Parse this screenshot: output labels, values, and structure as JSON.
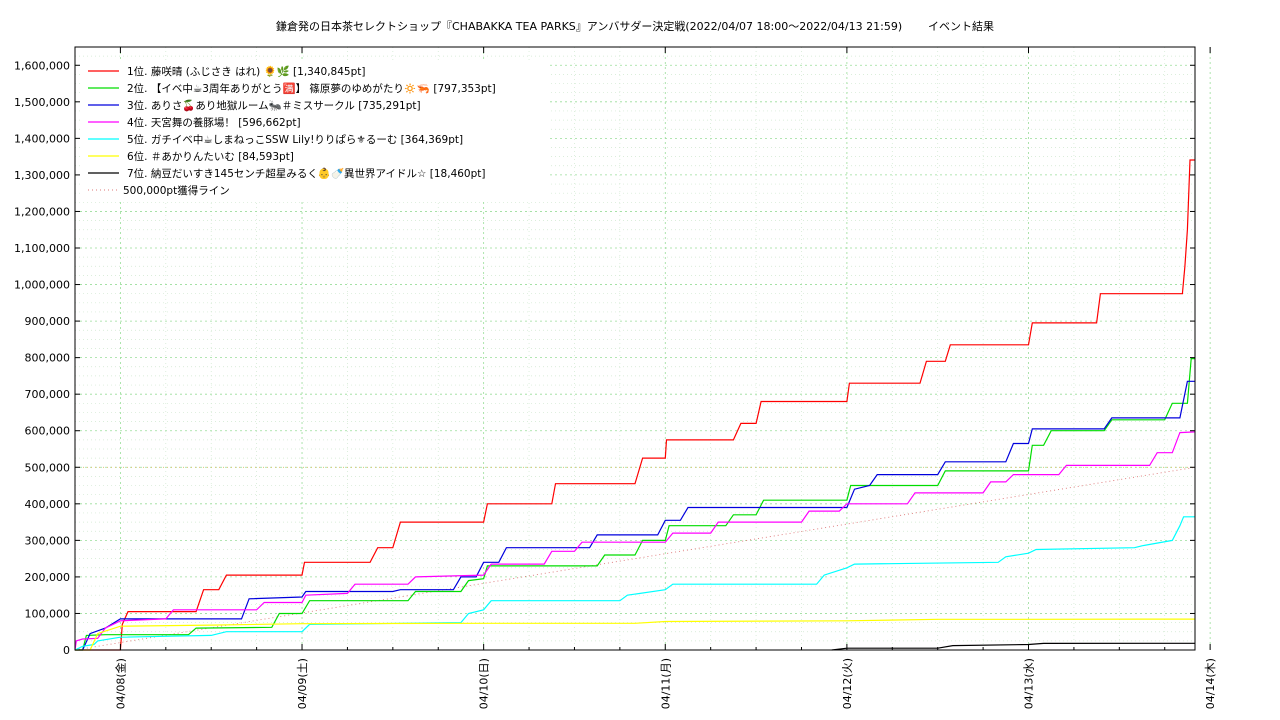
{
  "chart_data": {
    "type": "line",
    "title": "鎌倉発の日本茶セレクトショップ『CHABAKKA TEA PARKS』アンバサダー決定戦(2022/04/07 18:00～2022/04/13 21:59)",
    "subtitle": "イベント結果",
    "xlabel": "",
    "ylabel": "",
    "x_range": [
      "2022-04-07 18:00",
      "2022-04-13 22:00"
    ],
    "ylim": [
      0,
      1650000
    ],
    "y_ticks": [
      0,
      100000,
      200000,
      300000,
      400000,
      500000,
      600000,
      700000,
      800000,
      900000,
      1000000,
      1100000,
      1200000,
      1300000,
      1400000,
      1500000,
      1600000
    ],
    "y_tick_labels": [
      "0",
      "100,000",
      "200,000",
      "300,000",
      "400,000",
      "500,000",
      "600,000",
      "700,000",
      "800,000",
      "900,000",
      "1,000,000",
      "1,100,000",
      "1,200,000",
      "1,300,000",
      "1,400,000",
      "1,500,000",
      "1,600,000"
    ],
    "x_ticks": [
      "2022-04-08",
      "2022-04-09",
      "2022-04-10",
      "2022-04-11",
      "2022-04-12",
      "2022-04-13",
      "2022-04-14"
    ],
    "x_tick_labels": [
      "04/08(金)",
      "04/09(土)",
      "04/10(日)",
      "04/11(月)",
      "04/12(火)",
      "04/13(水)",
      "04/14(木)"
    ],
    "grid": true,
    "legend_position": "top-left",
    "series": [
      {
        "name": "1位. 藤咲晴 (ふじさき はれ) 🌻🌿 [1,340,845pt]",
        "color": "#ff0000",
        "points": [
          [
            "2022-04-07 18:00",
            0
          ],
          [
            "2022-04-08 00:00",
            0
          ],
          [
            "2022-04-08 00:15",
            70000
          ],
          [
            "2022-04-08 01:00",
            105000
          ],
          [
            "2022-04-08 10:00",
            105000
          ],
          [
            "2022-04-08 11:00",
            165000
          ],
          [
            "2022-04-08 13:00",
            165000
          ],
          [
            "2022-04-08 14:00",
            205000
          ],
          [
            "2022-04-09 00:00",
            205000
          ],
          [
            "2022-04-09 00:20",
            240000
          ],
          [
            "2022-04-09 09:00",
            240000
          ],
          [
            "2022-04-09 10:00",
            280000
          ],
          [
            "2022-04-09 12:00",
            280000
          ],
          [
            "2022-04-09 13:00",
            350000
          ],
          [
            "2022-04-10 00:00",
            350000
          ],
          [
            "2022-04-10 00:30",
            400000
          ],
          [
            "2022-04-10 09:00",
            400000
          ],
          [
            "2022-04-10 09:30",
            455000
          ],
          [
            "2022-04-10 20:00",
            455000
          ],
          [
            "2022-04-10 21:00",
            525000
          ],
          [
            "2022-04-11 00:00",
            525000
          ],
          [
            "2022-04-11 00:10",
            575000
          ],
          [
            "2022-04-11 09:00",
            575000
          ],
          [
            "2022-04-11 10:00",
            620000
          ],
          [
            "2022-04-11 12:00",
            620000
          ],
          [
            "2022-04-11 12:40",
            680000
          ],
          [
            "2022-04-12 00:00",
            680000
          ],
          [
            "2022-04-12 00:20",
            730000
          ],
          [
            "2022-04-12 09:40",
            730000
          ],
          [
            "2022-04-12 10:30",
            790000
          ],
          [
            "2022-04-12 13:00",
            790000
          ],
          [
            "2022-04-12 13:40",
            835000
          ],
          [
            "2022-04-13 00:00",
            835000
          ],
          [
            "2022-04-13 00:30",
            895000
          ],
          [
            "2022-04-13 09:00",
            895000
          ],
          [
            "2022-04-13 09:30",
            975000
          ],
          [
            "2022-04-13 20:20",
            975000
          ],
          [
            "2022-04-13 20:40",
            1050000
          ],
          [
            "2022-04-13 21:00",
            1150000
          ],
          [
            "2022-04-13 21:20",
            1340845
          ],
          [
            "2022-04-13 22:00",
            1340845
          ]
        ]
      },
      {
        "name": "2位. 【イベ中☕3周年ありがとう🈵】 篠原夢のゆめがたり🔅🦐 [797,353pt]",
        "color": "#00dd00",
        "points": [
          [
            "2022-04-07 18:00",
            0
          ],
          [
            "2022-04-07 19:00",
            0
          ],
          [
            "2022-04-07 19:30",
            40000
          ],
          [
            "2022-04-07 22:00",
            42000
          ],
          [
            "2022-04-08 09:00",
            42000
          ],
          [
            "2022-04-08 10:00",
            60000
          ],
          [
            "2022-04-08 20:00",
            62000
          ],
          [
            "2022-04-08 21:00",
            100000
          ],
          [
            "2022-04-09 00:00",
            100000
          ],
          [
            "2022-04-09 01:00",
            135000
          ],
          [
            "2022-04-09 14:00",
            135000
          ],
          [
            "2022-04-09 15:00",
            160000
          ],
          [
            "2022-04-09 21:00",
            160000
          ],
          [
            "2022-04-09 22:00",
            190000
          ],
          [
            "2022-04-10 00:00",
            195000
          ],
          [
            "2022-04-10 00:30",
            230000
          ],
          [
            "2022-04-10 15:00",
            230000
          ],
          [
            "2022-04-10 16:00",
            260000
          ],
          [
            "2022-04-10 20:00",
            260000
          ],
          [
            "2022-04-10 21:00",
            300000
          ],
          [
            "2022-04-11 00:00",
            300000
          ],
          [
            "2022-04-11 00:30",
            340000
          ],
          [
            "2022-04-11 08:00",
            340000
          ],
          [
            "2022-04-11 09:00",
            370000
          ],
          [
            "2022-04-11 12:00",
            370000
          ],
          [
            "2022-04-11 13:00",
            410000
          ],
          [
            "2022-04-12 00:00",
            410000
          ],
          [
            "2022-04-12 00:30",
            450000
          ],
          [
            "2022-04-12 12:00",
            450000
          ],
          [
            "2022-04-12 13:00",
            490000
          ],
          [
            "2022-04-13 00:00",
            490000
          ],
          [
            "2022-04-13 00:30",
            560000
          ],
          [
            "2022-04-13 02:00",
            560000
          ],
          [
            "2022-04-13 03:00",
            600000
          ],
          [
            "2022-04-13 10:00",
            600000
          ],
          [
            "2022-04-13 11:00",
            630000
          ],
          [
            "2022-04-13 18:00",
            630000
          ],
          [
            "2022-04-13 19:00",
            675000
          ],
          [
            "2022-04-13 21:00",
            675000
          ],
          [
            "2022-04-13 21:30",
            797353
          ],
          [
            "2022-04-13 22:00",
            797353
          ]
        ]
      },
      {
        "name": "3位. ありさ🍒あり地獄ルーム🐜＃ミスサークル [735,291pt]",
        "color": "#0000dd",
        "points": [
          [
            "2022-04-07 18:00",
            0
          ],
          [
            "2022-04-07 19:00",
            0
          ],
          [
            "2022-04-07 20:00",
            45000
          ],
          [
            "2022-04-07 22:00",
            60000
          ],
          [
            "2022-04-08 00:00",
            85000
          ],
          [
            "2022-04-08 12:00",
            85000
          ],
          [
            "2022-04-08 16:00",
            85000
          ],
          [
            "2022-04-08 17:00",
            140000
          ],
          [
            "2022-04-09 00:00",
            145000
          ],
          [
            "2022-04-09 00:30",
            160000
          ],
          [
            "2022-04-09 12:00",
            160000
          ],
          [
            "2022-04-09 13:00",
            165000
          ],
          [
            "2022-04-09 20:00",
            165000
          ],
          [
            "2022-04-09 21:00",
            200000
          ],
          [
            "2022-04-09 23:00",
            200000
          ],
          [
            "2022-04-10 00:00",
            240000
          ],
          [
            "2022-04-10 02:00",
            240000
          ],
          [
            "2022-04-10 03:00",
            280000
          ],
          [
            "2022-04-10 14:00",
            280000
          ],
          [
            "2022-04-10 15:00",
            315000
          ],
          [
            "2022-04-10 23:00",
            315000
          ],
          [
            "2022-04-11 00:00",
            355000
          ],
          [
            "2022-04-11 02:00",
            355000
          ],
          [
            "2022-04-11 03:00",
            390000
          ],
          [
            "2022-04-12 00:00",
            390000
          ],
          [
            "2022-04-12 01:00",
            440000
          ],
          [
            "2022-04-12 03:00",
            450000
          ],
          [
            "2022-04-12 04:00",
            480000
          ],
          [
            "2022-04-12 12:00",
            480000
          ],
          [
            "2022-04-12 13:00",
            515000
          ],
          [
            "2022-04-12 21:00",
            515000
          ],
          [
            "2022-04-12 22:00",
            565000
          ],
          [
            "2022-04-13 00:00",
            565000
          ],
          [
            "2022-04-13 00:30",
            605000
          ],
          [
            "2022-04-13 10:00",
            605000
          ],
          [
            "2022-04-13 11:00",
            635000
          ],
          [
            "2022-04-13 20:00",
            635000
          ],
          [
            "2022-04-13 21:00",
            735291
          ],
          [
            "2022-04-13 22:00",
            735291
          ]
        ]
      },
      {
        "name": "4位. 天宮舞の養豚場！ [596,662pt]",
        "color": "#ff00ff",
        "points": [
          [
            "2022-04-07 18:00",
            0
          ],
          [
            "2022-04-07 18:10",
            25000
          ],
          [
            "2022-04-07 19:00",
            30000
          ],
          [
            "2022-04-07 21:00",
            32000
          ],
          [
            "2022-04-07 22:00",
            60000
          ],
          [
            "2022-04-08 00:00",
            80000
          ],
          [
            "2022-04-08 06:00",
            85000
          ],
          [
            "2022-04-08 07:00",
            110000
          ],
          [
            "2022-04-08 18:00",
            110000
          ],
          [
            "2022-04-08 19:00",
            130000
          ],
          [
            "2022-04-09 00:00",
            130000
          ],
          [
            "2022-04-09 00:30",
            150000
          ],
          [
            "2022-04-09 06:00",
            155000
          ],
          [
            "2022-04-09 07:00",
            180000
          ],
          [
            "2022-04-09 14:00",
            180000
          ],
          [
            "2022-04-09 15:00",
            200000
          ],
          [
            "2022-04-10 00:00",
            205000
          ],
          [
            "2022-04-10 01:00",
            235000
          ],
          [
            "2022-04-10 08:00",
            235000
          ],
          [
            "2022-04-10 09:00",
            270000
          ],
          [
            "2022-04-10 12:00",
            270000
          ],
          [
            "2022-04-10 13:00",
            295000
          ],
          [
            "2022-04-11 00:00",
            295000
          ],
          [
            "2022-04-11 01:00",
            320000
          ],
          [
            "2022-04-11 06:00",
            320000
          ],
          [
            "2022-04-11 07:00",
            350000
          ],
          [
            "2022-04-11 18:00",
            350000
          ],
          [
            "2022-04-11 19:00",
            380000
          ],
          [
            "2022-04-11 23:00",
            380000
          ],
          [
            "2022-04-12 00:00",
            400000
          ],
          [
            "2022-04-12 08:00",
            400000
          ],
          [
            "2022-04-12 09:00",
            430000
          ],
          [
            "2022-04-12 18:00",
            430000
          ],
          [
            "2022-04-12 19:00",
            460000
          ],
          [
            "2022-04-12 21:00",
            460000
          ],
          [
            "2022-04-12 22:00",
            480000
          ],
          [
            "2022-04-13 04:00",
            480000
          ],
          [
            "2022-04-13 05:00",
            505000
          ],
          [
            "2022-04-13 16:00",
            505000
          ],
          [
            "2022-04-13 17:00",
            540000
          ],
          [
            "2022-04-13 19:00",
            540000
          ],
          [
            "2022-04-13 20:00",
            595000
          ],
          [
            "2022-04-13 22:00",
            596662
          ]
        ]
      },
      {
        "name": "5位. ガチイベ中☕しまねっこSSW Lily!りりぱら⚜るーむ [364,369pt]",
        "color": "#00ffff",
        "points": [
          [
            "2022-04-07 18:00",
            0
          ],
          [
            "2022-04-07 19:00",
            10000
          ],
          [
            "2022-04-07 20:30",
            15000
          ],
          [
            "2022-04-07 21:00",
            25000
          ],
          [
            "2022-04-08 00:00",
            35000
          ],
          [
            "2022-04-08 12:00",
            40000
          ],
          [
            "2022-04-08 14:00",
            50000
          ],
          [
            "2022-04-09 00:00",
            50000
          ],
          [
            "2022-04-09 01:00",
            70000
          ],
          [
            "2022-04-09 21:00",
            75000
          ],
          [
            "2022-04-09 22:00",
            100000
          ],
          [
            "2022-04-10 00:00",
            110000
          ],
          [
            "2022-04-10 01:00",
            135000
          ],
          [
            "2022-04-10 18:00",
            135000
          ],
          [
            "2022-04-10 19:00",
            150000
          ],
          [
            "2022-04-11 00:00",
            165000
          ],
          [
            "2022-04-11 01:00",
            180000
          ],
          [
            "2022-04-11 20:00",
            180000
          ],
          [
            "2022-04-11 21:00",
            205000
          ],
          [
            "2022-04-12 00:00",
            225000
          ],
          [
            "2022-04-12 01:00",
            235000
          ],
          [
            "2022-04-12 20:00",
            240000
          ],
          [
            "2022-04-12 21:00",
            255000
          ],
          [
            "2022-04-13 00:00",
            265000
          ],
          [
            "2022-04-13 01:00",
            275000
          ],
          [
            "2022-04-13 14:00",
            280000
          ],
          [
            "2022-04-13 15:00",
            285000
          ],
          [
            "2022-04-13 19:00",
            300000
          ],
          [
            "2022-04-13 20:00",
            340000
          ],
          [
            "2022-04-13 20:30",
            364369
          ],
          [
            "2022-04-13 22:00",
            364369
          ]
        ]
      },
      {
        "name": "6位. ＃あかりんたいむ [84,593pt]",
        "color": "#ffff00",
        "points": [
          [
            "2022-04-07 18:00",
            0
          ],
          [
            "2022-04-07 20:00",
            0
          ],
          [
            "2022-04-07 21:00",
            45000
          ],
          [
            "2022-04-08 00:00",
            65000
          ],
          [
            "2022-04-08 12:00",
            68000
          ],
          [
            "2022-04-09 00:00",
            72000
          ],
          [
            "2022-04-10 00:00",
            73000
          ],
          [
            "2022-04-10 20:00",
            73000
          ],
          [
            "2022-04-11 00:00",
            78000
          ],
          [
            "2022-04-12 00:00",
            80000
          ],
          [
            "2022-04-12 12:00",
            84000
          ],
          [
            "2022-04-13 00:00",
            84000
          ],
          [
            "2022-04-13 22:00",
            84593
          ]
        ]
      },
      {
        "name": "7位. 納豆だいすき145センチ超星みるく👶🍼異世界アイドル☆ [18,460pt]",
        "color": "#000000",
        "points": [
          [
            "2022-04-11 22:00",
            0
          ],
          [
            "2022-04-12 00:00",
            5000
          ],
          [
            "2022-04-12 12:00",
            5000
          ],
          [
            "2022-04-12 14:00",
            12000
          ],
          [
            "2022-04-13 00:00",
            15000
          ],
          [
            "2022-04-13 02:00",
            18000
          ],
          [
            "2022-04-13 22:00",
            18460
          ]
        ]
      },
      {
        "name": "500,000pt獲得ライン",
        "color": "#dd7777",
        "dashed": true,
        "points": [
          [
            "2022-04-07 18:00",
            0
          ],
          [
            "2022-04-13 22:00",
            500000
          ]
        ]
      }
    ]
  }
}
